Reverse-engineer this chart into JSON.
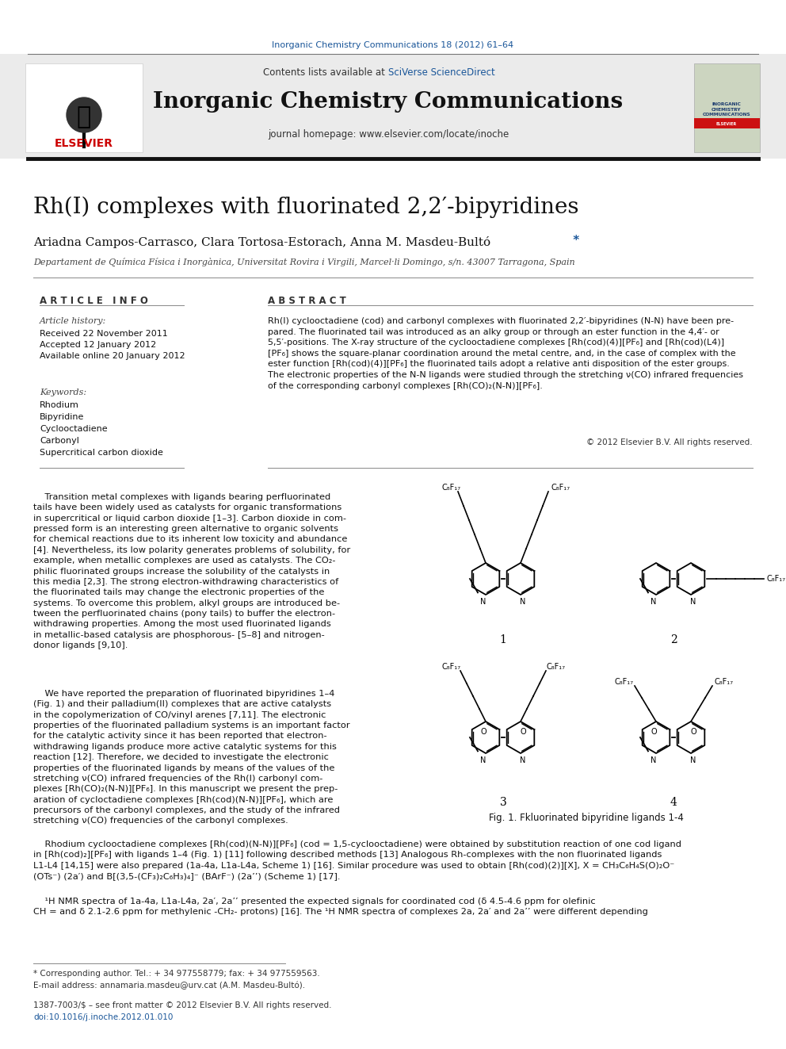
{
  "title": "Rh(I) complexes with fluorinated 2,2′-bipyridines",
  "journal_header": "Inorganic Chemistry Communications 18 (2012) 61–64",
  "journal_name": "Inorganic Chemistry Communications",
  "journal_homepage": "journal homepage: www.elsevier.com/locate/inoche",
  "authors": "Ariadna Campos-Carrasco, Clara Tortosa-Estorach, Anna M. Masdeu-Bultó",
  "affiliation": "Departament de Química Física i Inorgànica, Universitat Rovira i Virgili, Marcel·li Domingo, s/n. 43007 Tarragona, Spain",
  "article_info_title": "A R T I C L E   I N F O",
  "abstract_title": "A B S T R A C T",
  "article_history_label": "Article history:",
  "received": "Received 22 November 2011",
  "accepted": "Accepted 12 January 2012",
  "available": "Available online 20 January 2012",
  "keywords_label": "Keywords:",
  "keywords": [
    "Rhodium",
    "Bipyridine",
    "Cyclooctadiene",
    "Carbonyl",
    "Supercritical carbon dioxide"
  ],
  "abstract_text": "Rh(I) cyclooctadiene (cod) and carbonyl complexes with fluorinated 2,2′-bipyridines (N-N) have been pre-\npared. The fluorinated tail was introduced as an alky group or through an ester function in the 4,4′- or\n5,5′-positions. The X-ray structure of the cyclooctadiene complexes [Rh(cod)(4)][PF₆] and [Rh(cod)(L4)]\n[PF₆] shows the square-planar coordination around the metal centre, and, in the case of complex with the\nester function [Rh(cod)(4)][PF₆] the fluorinated tails adopt a relative anti disposition of the ester groups.\nThe electronic properties of the N-N ligands were studied through the stretching ν(CO) infrared frequencies\nof the corresponding carbonyl complexes [Rh(CO)₂(N-N)][PF₆].",
  "copyright": "© 2012 Elsevier B.V. All rights reserved.",
  "body_text_1": "    Transition metal complexes with ligands bearing perfluorinated\ntails have been widely used as catalysts for organic transformations\nin supercritical or liquid carbon dioxide [1–3]. Carbon dioxide in com-\npressed form is an interesting green alternative to organic solvents\nfor chemical reactions due to its inherent low toxicity and abundance\n[4]. Nevertheless, its low polarity generates problems of solubility, for\nexample, when metallic complexes are used as catalysts. The CO₂-\nphilic fluorinated groups increase the solubility of the catalysts in\nthis media [2,3]. The strong electron-withdrawing characteristics of\nthe fluorinated tails may change the electronic properties of the\nsystems. To overcome this problem, alkyl groups are introduced be-\ntween the perfluorinated chains (pony tails) to buffer the electron-\nwithdrawing properties. Among the most used fluorinated ligands\nin metallic-based catalysis are phosphorous- [5–8] and nitrogen-\ndonor ligands [9,10].",
  "body_text_2": "    We have reported the preparation of fluorinated bipyridines 1–4\n(Fig. 1) and their palladium(II) complexes that are active catalysts\nin the copolymerization of CO/vinyl arenes [7,11]. The electronic\nproperties of the fluorinated palladium systems is an important factor\nfor the catalytic activity since it has been reported that electron-\nwithdrawing ligands produce more active catalytic systems for this\nreaction [12]. Therefore, we decided to investigate the electronic\nproperties of the fluorinated ligands by means of the values of the\nstretching ν(CO) infrared frequencies of the Rh(I) carbonyl com-\nplexes [Rh(CO)₂(N-N)][PF₆]. In this manuscript we present the prep-\naration of cycloctadiene complexes [Rh(cod)(N-N)][PF₆], which are\nprecursors of the carbonyl complexes, and the study of the infrared\nstretching ν(CO) frequencies of the carbonyl complexes.",
  "fig1_caption": "Fig. 1. Fkluorinated bipyridine ligands 1-4",
  "body_text_3": "    Rhodium cyclooctadiene complexes [Rh(cod)(N-N)][PF₆] (cod = 1,5-cyclooctadiene) were obtained by substitution reaction of one cod ligand\nin [Rh(cod)₂][PF₆] with ligands 1–4 (Fig. 1) [11] following described methods [13] Analogous Rh-complexes with the non fluorinated ligands\nL1-L4 [14,15] were also prepared (1a-4a, L1a-L4a, Scheme 1) [16]. Similar procedure was used to obtain [Rh(cod)(2)][X], X = CH₃C₆H₄S(O)₂O⁻\n(OTs⁻) (2a′) and B[(3,5-(CF₃)₂C₆H₃)₄]⁻ (BArF⁻) (2a’’) (Scheme 1) [17].",
  "body_text_4": "    ¹H NMR spectra of 1a-4a, L1a-L4a, 2a′, 2a’’ presented the expected signals for coordinated cod (δ 4.5-4.6 ppm for olefinic\nCH = and δ 2.1-2.6 ppm for methylenic -CH₂- protons) [16]. The ¹H NMR spectra of complexes 2a, 2a′ and 2a’’ were different depending",
  "footnote_1": "* Corresponding author. Tel.: + 34 977558779; fax: + 34 977559563.",
  "footnote_2": "E-mail address: annamaria.masdeu@urv.cat (A.M. Masdeu-Bultó).",
  "footnote_3": "1387-7003/$ – see front matter © 2012 Elsevier B.V. All rights reserved.",
  "footnote_4": "doi:10.1016/j.inoche.2012.01.010",
  "bg_color": "#ffffff",
  "journal_color": "#1a5699",
  "text_color": "#000000",
  "elsevier_red": "#cc0000"
}
